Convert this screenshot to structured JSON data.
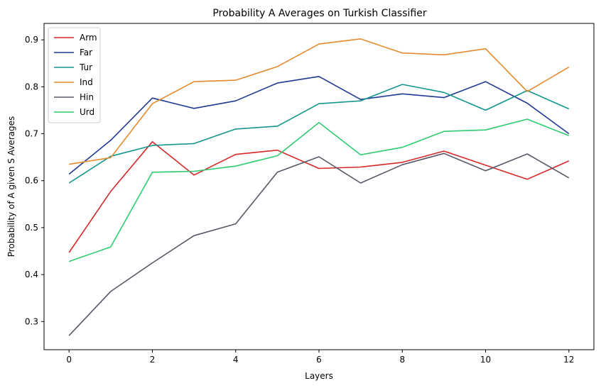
{
  "chart_data": {
    "type": "line",
    "title": "Probability A Averages on Turkish Classifier",
    "xlabel": "Layers",
    "ylabel": "Probability of A given S Averages",
    "x": [
      0,
      1,
      2,
      3,
      4,
      5,
      6,
      7,
      8,
      9,
      10,
      11,
      12
    ],
    "xlim": [
      -0.6,
      12.6
    ],
    "ylim": [
      0.24,
      0.935
    ],
    "xticks": [
      0,
      2,
      4,
      6,
      8,
      10,
      12
    ],
    "yticks": [
      0.3,
      0.4,
      0.5,
      0.6,
      0.7,
      0.8,
      0.9
    ],
    "grid": false,
    "legend_position": "top-left",
    "series": [
      {
        "name": "Arm",
        "color": "#d62728",
        "values": [
          0.447,
          0.577,
          0.683,
          0.612,
          0.656,
          0.665,
          0.626,
          0.629,
          0.639,
          0.663,
          0.633,
          0.603,
          0.642
        ]
      },
      {
        "name": "Far",
        "color": "#1f3a93",
        "values": [
          0.614,
          0.686,
          0.776,
          0.754,
          0.77,
          0.808,
          0.822,
          0.773,
          0.785,
          0.777,
          0.811,
          0.765,
          0.7
        ]
      },
      {
        "name": "Tur",
        "color": "#13968b",
        "values": [
          0.595,
          0.652,
          0.675,
          0.679,
          0.71,
          0.716,
          0.764,
          0.77,
          0.805,
          0.788,
          0.75,
          0.792,
          0.753
        ]
      },
      {
        "name": "Ind",
        "color": "#e68a2e",
        "values": [
          0.635,
          0.649,
          0.764,
          0.811,
          0.814,
          0.843,
          0.891,
          0.902,
          0.872,
          0.868,
          0.881,
          0.79,
          0.842
        ]
      },
      {
        "name": "Hin",
        "color": "#555a66",
        "values": [
          0.27,
          0.364,
          0.425,
          0.483,
          0.508,
          0.618,
          0.651,
          0.595,
          0.634,
          0.658,
          0.621,
          0.657,
          0.606
        ]
      },
      {
        "name": "Urd",
        "color": "#2ecc71",
        "values": [
          0.428,
          0.459,
          0.618,
          0.62,
          0.631,
          0.653,
          0.724,
          0.655,
          0.671,
          0.705,
          0.708,
          0.731,
          0.696
        ]
      }
    ]
  }
}
